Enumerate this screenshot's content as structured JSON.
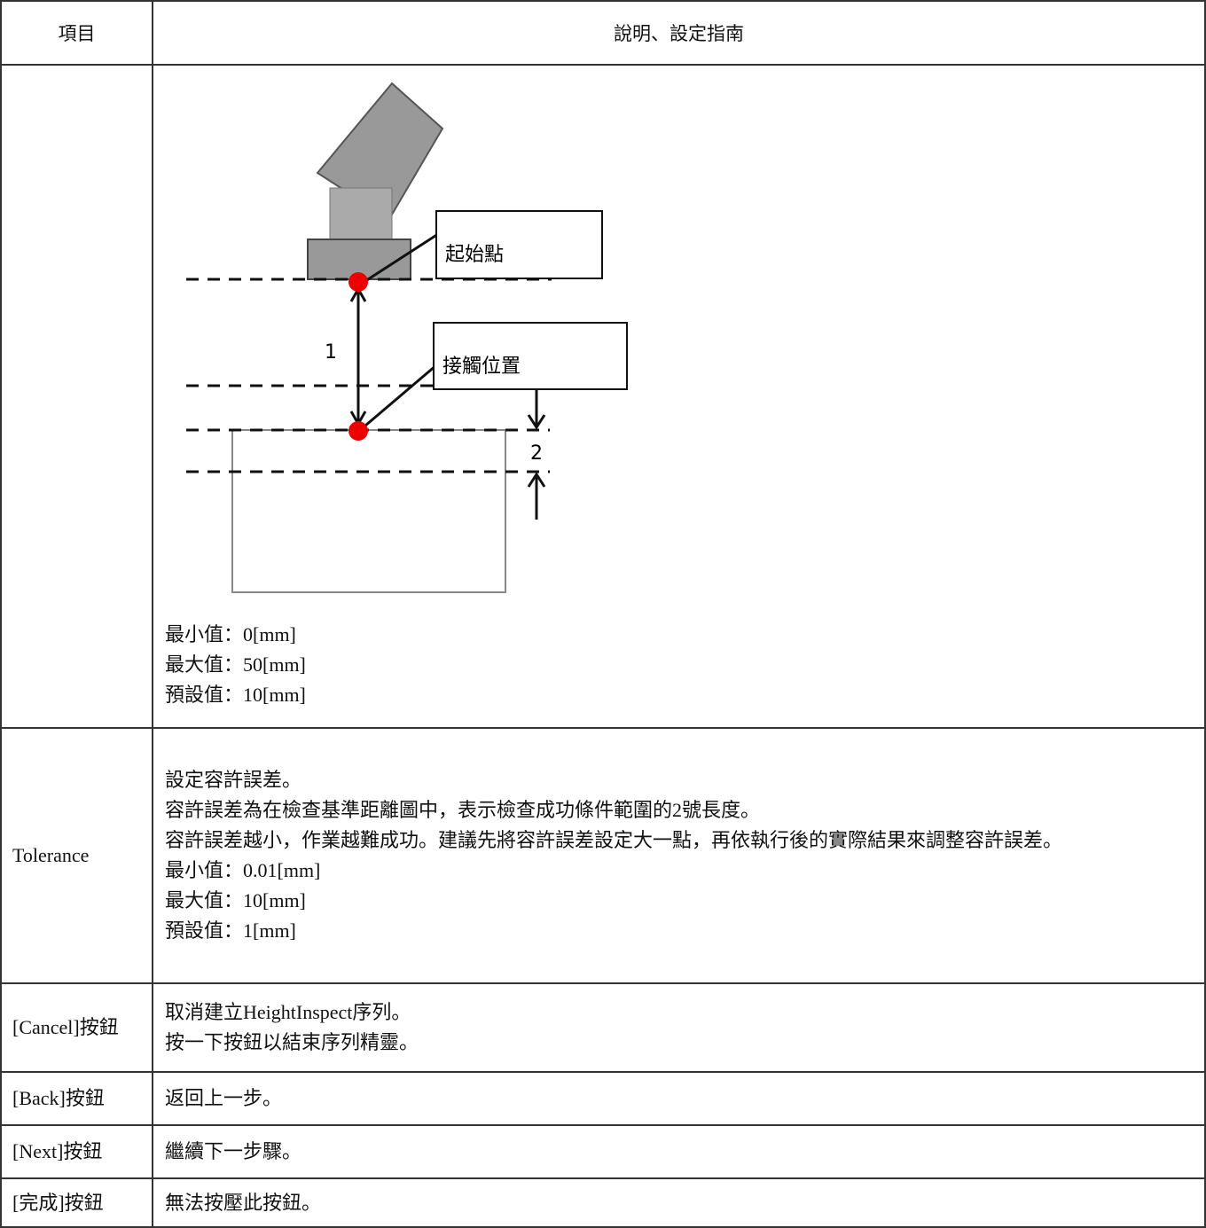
{
  "table": {
    "header": [
      "項目",
      "說明、設定指南"
    ],
    "rows": [
      {
        "diagram": {
          "labels": [
            "起始點",
            "接觸位置",
            "1",
            "2"
          ]
        },
        "lines": [
          "最小值：0[mm]",
          "最大值：50[mm]",
          "預設值：10[mm]"
        ]
      },
      {
        "item": "Tolerance",
        "lines": [
          "設定容許誤差。",
          "容許誤差為在檢查基準距離圖中，表示檢查成功條件範圍的2號長度。",
          "容許誤差越小，作業越難成功。建議先將容許誤差設定大一點，再依執行後的實際結果來調整容許誤差。",
          "最小值：0.01[mm]",
          "最大值：10[mm]",
          "預設值：1[mm]"
        ]
      },
      {
        "item": "[Cancel]按鈕",
        "lines": [
          "取消建立HeightInspect序列。",
          "按一下按鈕以結束序列精靈。"
        ]
      },
      {
        "item": "[Back]按鈕",
        "lines": [
          "返回上一步。"
        ]
      },
      {
        "item": "[Next]按鈕",
        "lines": [
          "繼續下一步驟。"
        ]
      },
      {
        "item": "[完成]按鈕",
        "lines": [
          "無法按壓此按鈕。"
        ]
      }
    ]
  }
}
